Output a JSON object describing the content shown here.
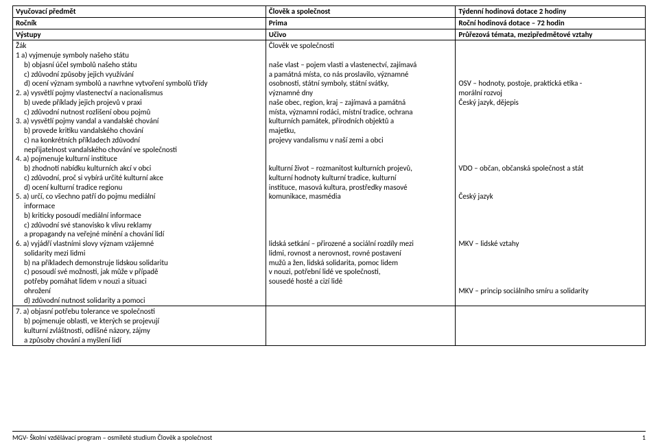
{
  "header": {
    "r1c1": "Vyučovací předmět",
    "r1c2": "Člověk a společnost",
    "r1c3": "Týdenní hodinová dotace 2 hodiny",
    "r2c1": "Ročník",
    "r2c2": "Prima",
    "r2c3": "Roční hodinová dotace – 72 hodin",
    "r3c1": "Výstupy",
    "r3c2": "Učivo",
    "r3c3": "Průřezová témata, mezipředmětové vztahy"
  },
  "row4": {
    "col1": [
      "Žák",
      "1 a) vyjmenuje symboly našeho státu",
      "   b) objasní účel symbolů našeho státu",
      "   c) zdůvodní způsoby jejich využívání",
      "   d) ocení význam symbolů a navrhne vytvoření symbolů třídy",
      "2. a) vysvětlí pojmy vlastenectví a nacionalismus",
      "   b) uvede příklady jejich projevů v praxi",
      "   c) zdůvodní nutnost rozlišení obou pojmů",
      "3. a) vysvětlí pojmy vandal a vandalské chování",
      "   b) provede kritiku vandalského chování",
      "   c) na konkrétních příkladech zdůvodní",
      "       nepřijatelnost vandalského chování ve společnosti",
      "4. a) pojmenuje kulturní instituce",
      "   b) zhodnotí nabídku kulturních akcí v obci",
      "   c) zdůvodní, proč si vybírá určité kulturní akce",
      "   d) ocení kulturní tradice regionu",
      "5. a) určí, co všechno patří do pojmu mediální",
      "   informace",
      "   b) kriticky posoudí mediální informace",
      "   c) zdůvodní své stanovisko k vlivu reklamy",
      "      a propagandy na veřejné mínění a chování lidí",
      "6. a) vyjádří vlastními slovy význam vzájemné",
      "   solidarity mezi lidmi",
      "   b) na příkladech demonstruje lidskou solidaritu",
      "   c) posoudí své možnosti, jak může v případě",
      "     potřeby pomáhat lidem v nouzi a situaci",
      "     ohrožení",
      "   d) zdůvodní nutnost solidarity a pomoci"
    ],
    "col2": [
      "Člověk ve společnosti",
      "",
      "naše vlast – pojem vlasti a vlastenectví, zajímavá",
      "a památná místa, co nás proslavilo, významné",
      "osobnosti, státní symboly, státní svátky,",
      "významné dny",
      "naše obec, region, kraj – zajímavá a památná",
      "místa, významní rodáci, místní tradice, ochrana",
      "kulturních památek, přírodních objektů a",
      "majetku,",
      "projevy vandalismu v naší zemi a obci",
      "",
      "",
      "kulturní život – rozmanitost kulturních projevů,",
      "kulturní hodnoty kulturní tradice, kulturní",
      "instituce, masová kultura, prostředky masové",
      "komunikace, masmédia",
      "",
      "",
      "",
      "",
      "lidská setkání – přirozené a sociální rozdíly mezi",
      "lidmi, rovnost a nerovnost, rovné postavení",
      "mužů a žen, lidská solidarita, pomoc lidem",
      "v nouzi, potřební lidé ve společnosti,",
      "sousedé hosté a cizí lidé"
    ],
    "col3": [
      "",
      "",
      "",
      "",
      "OSV – hodnoty, postoje, praktická etika -",
      "morální rozvoj",
      "Český jazyk, dějepis",
      "",
      "",
      "",
      "",
      "",
      "",
      "VDO – občan, občanská společnost a stát",
      "",
      "",
      "Český jazyk",
      "",
      "",
      "",
      "",
      "MKV – lidské vztahy",
      "",
      "",
      "",
      "",
      "MKV – princip sociálního smíru a solidarity"
    ]
  },
  "row5": {
    "col1": [
      "7. a) objasní potřebu tolerance ve společnosti",
      "   b) pojmenuje oblasti, ve kterých se projevují",
      "       kulturní zvláštnosti, odlišné názory, zájmy",
      "       a způsoby chování a myšlení lidí"
    ]
  },
  "footer": {
    "text": "MGV- Školní vzdělávací program – osmileté studium Člověk a společnost",
    "page": "1"
  }
}
